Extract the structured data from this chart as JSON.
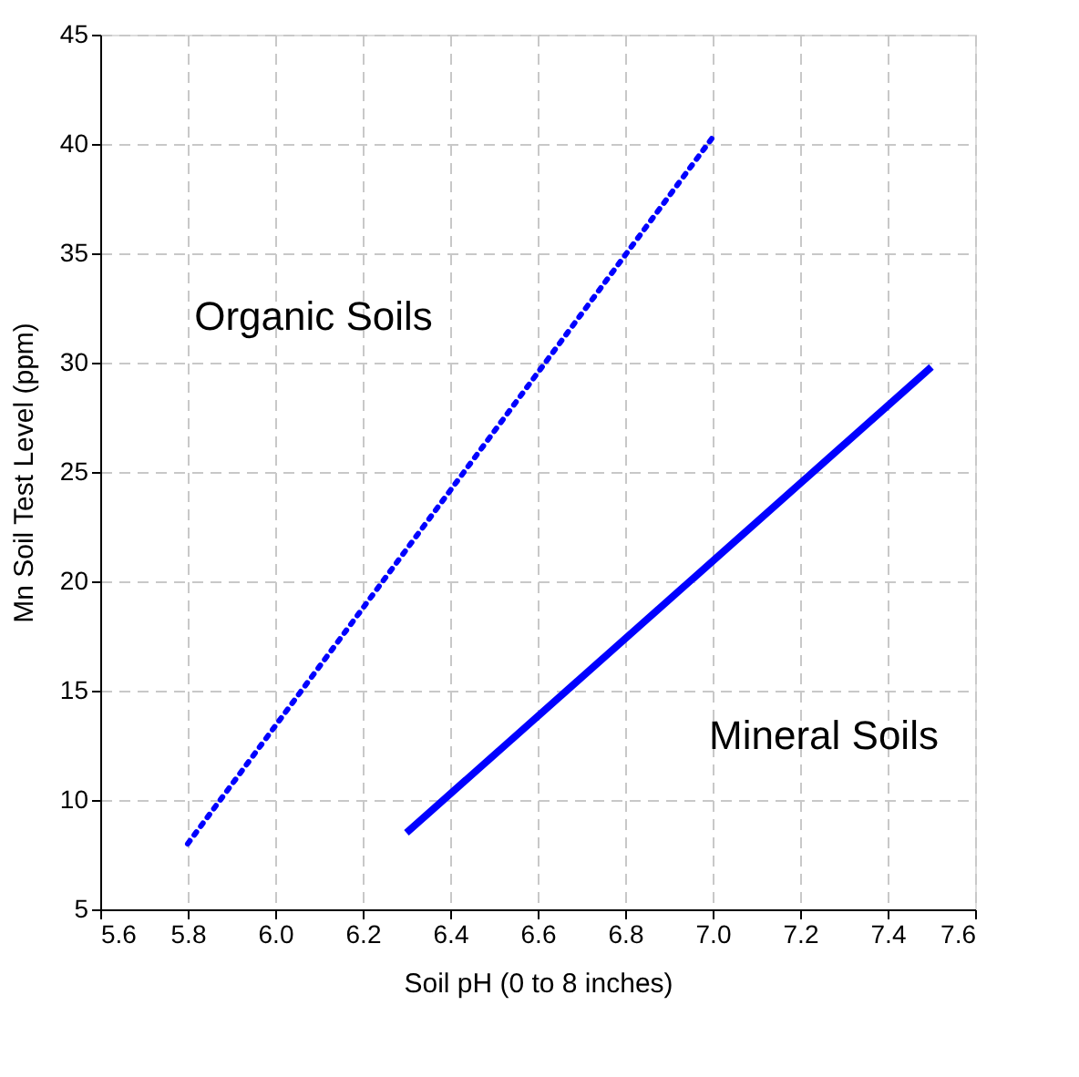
{
  "chart_data": {
    "type": "line",
    "xlabel": "Soil pH (0 to 8 inches)",
    "ylabel": "Mn Soil Test Level (ppm)",
    "series": [
      {
        "name": "Organic Soils",
        "color": "#0000ff",
        "line_style": "dotted",
        "x": [
          5.8,
          7.0
        ],
        "values": [
          8,
          40.3
        ]
      },
      {
        "name": "Mineral Soils",
        "color": "#0000ff",
        "line_style": "solid",
        "x": [
          6.3,
          7.5
        ],
        "values": [
          8.5,
          29.8
        ]
      }
    ],
    "xlim": [
      5.6,
      7.6
    ],
    "xticks": [
      5.6,
      5.8,
      {
        "value": 6.0,
        "label": "6.0"
      },
      6.2,
      6.4,
      6.6,
      6.8,
      {
        "value": 7.0,
        "label": "7.0"
      },
      7.2,
      7.4,
      7.6
    ],
    "ylim": [
      5,
      45
    ],
    "yticks": [
      5,
      10,
      15,
      20,
      25,
      30,
      35,
      40,
      45
    ],
    "grid": true,
    "legend": false,
    "marker": "none"
  }
}
